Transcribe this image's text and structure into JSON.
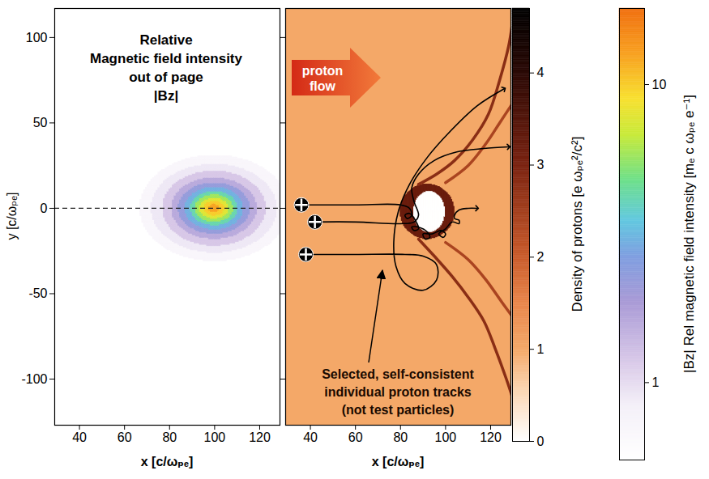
{
  "chart_data": [
    {
      "type": "heatmap",
      "title": "Relative\nMagnetic field intensity\nout of page\n|Bz|",
      "x_label": "x [c/ωₚₑ]",
      "y_label": "y [c/ωₚₑ]",
      "xlim": [
        29,
        129
      ],
      "ylim": [
        -127,
        117
      ],
      "xticks": [
        40,
        60,
        80,
        100,
        120
      ],
      "yticks": [
        -100,
        -50,
        0,
        50,
        100
      ],
      "field": {
        "center": [
          100,
          0
        ],
        "contours": [
          {
            "value": 0.7,
            "rx": 33,
            "ry": 31
          },
          {
            "value": 0.9,
            "rx": 28,
            "ry": 26
          },
          {
            "value": 1.2,
            "rx": 23,
            "ry": 22
          },
          {
            "value": 1.6,
            "rx": 19,
            "ry": 18
          },
          {
            "value": 2.2,
            "rx": 16,
            "ry": 15
          },
          {
            "value": 3,
            "rx": 13,
            "ry": 12.5
          },
          {
            "value": 4.2,
            "rx": 10.5,
            "ry": 10
          },
          {
            "value": 5.8,
            "rx": 8.5,
            "ry": 8
          },
          {
            "value": 7.8,
            "rx": 6.5,
            "ry": 6
          },
          {
            "value": 10,
            "rx": 4.5,
            "ry": 4.3
          },
          {
            "value": 12.5,
            "rx": 2.5,
            "ry": 2.4
          }
        ]
      },
      "colorbar": {
        "label": "|Bz| Rel magnetic field intensity [mₑ c ωₚₑ e⁻¹]",
        "range": [
          0.55,
          18
        ],
        "ticks": [
          1,
          10
        ],
        "log": true
      },
      "annotations": [
        {
          "type": "hline",
          "y": 0,
          "line_style": "dashed"
        }
      ]
    },
    {
      "type": "heatmap",
      "x_label": "x [c/ωₚₑ]",
      "xlim": [
        29,
        129
      ],
      "ylim": [
        -127,
        117
      ],
      "xticks": [
        40,
        60,
        80,
        100,
        120
      ],
      "yticks": [
        -100,
        -50,
        0,
        50,
        100
      ],
      "tick_labels": "x",
      "field": {
        "background": 1,
        "regions": [
          {
            "value": 3.2,
            "cx": 92,
            "cy": -2,
            "rx": 12,
            "ry": 16
          },
          {
            "value": 0,
            "cx": 93,
            "cy": -2,
            "rx": 7,
            "ry": 12
          }
        ],
        "shock_fronts": [
          {
            "value": 2.8,
            "points": [
              [
                88,
                14
              ],
              [
                96,
                20
              ],
              [
                104,
                28
              ],
              [
                112,
                40
              ],
              [
                119,
                55
              ],
              [
                124,
                75
              ],
              [
                128,
                95
              ],
              [
                130,
                112
              ]
            ]
          },
          {
            "value": 2.4,
            "points": [
              [
                100,
                15
              ],
              [
                110,
                25
              ],
              [
                118,
                38
              ],
              [
                124,
                50
              ],
              [
                130,
                62
              ]
            ]
          },
          {
            "value": 2.8,
            "points": [
              [
                88,
                -18
              ],
              [
                95,
                -28
              ],
              [
                103,
                -40
              ],
              [
                110,
                -52
              ],
              [
                117,
                -66
              ],
              [
                122,
                -82
              ],
              [
                127,
                -100
              ],
              [
                130,
                -112
              ]
            ]
          },
          {
            "value": 2.4,
            "points": [
              [
                100,
                -20
              ],
              [
                110,
                -30
              ],
              [
                118,
                -42
              ],
              [
                125,
                -55
              ],
              [
                130,
                -64
              ]
            ]
          }
        ]
      },
      "tracks": [
        {
          "points": [
            [
              36,
              2
            ],
            [
              60,
              2
            ],
            [
              80,
              2
            ],
            [
              84,
              0
            ],
            [
              85,
              -4
            ],
            [
              83,
              -6
            ],
            [
              82,
              -4
            ],
            [
              84,
              -3
            ],
            [
              87,
              -8
            ],
            [
              88,
              -12
            ],
            [
              86,
              -13
            ],
            [
              85,
              -11
            ],
            [
              88,
              -11
            ],
            [
              92,
              -14
            ],
            [
              93,
              -17
            ],
            [
              91,
              -18
            ],
            [
              90,
              -15
            ],
            [
              94,
              -15
            ],
            [
              98,
              -13
            ],
            [
              100,
              -15
            ],
            [
              99,
              -17
            ],
            [
              97,
              -15
            ],
            [
              100,
              -12
            ],
            [
              103,
              -8
            ],
            [
              106,
              -9
            ],
            [
              106,
              -7
            ],
            [
              104,
              -6
            ],
            [
              104,
              -4
            ],
            [
              106,
              -1
            ],
            [
              110,
              0
            ],
            [
              114,
              0
            ]
          ]
        },
        {
          "points": [
            [
              42,
              -8
            ],
            [
              60,
              -8
            ],
            [
              80,
              -9
            ],
            [
              86,
              -8
            ],
            [
              88,
              -4
            ],
            [
              86,
              4
            ],
            [
              85,
              12
            ],
            [
              88,
              20
            ],
            [
              95,
              28
            ],
            [
              105,
              33
            ],
            [
              117,
              35
            ],
            [
              128,
              36
            ]
          ]
        },
        {
          "points": [
            [
              38,
              -27
            ],
            [
              60,
              -27
            ],
            [
              82,
              -27
            ],
            [
              90,
              -28
            ],
            [
              96,
              -33
            ],
            [
              96,
              -42
            ],
            [
              90,
              -48
            ],
            [
              82,
              -44
            ],
            [
              78,
              -34
            ],
            [
              77,
              -20
            ],
            [
              79,
              -2
            ],
            [
              84,
              14
            ],
            [
              92,
              30
            ],
            [
              102,
              45
            ],
            [
              114,
              60
            ],
            [
              126,
              70
            ]
          ]
        }
      ],
      "colorbar": {
        "label": "Density of protons [e ωₚₑ²/c²]",
        "range": [
          0,
          4.7
        ],
        "ticks": [
          0,
          1,
          2,
          3,
          4
        ]
      },
      "annotations": [
        {
          "type": "arrow",
          "text": "proton\nflow"
        },
        {
          "type": "label",
          "text": "Selected, self-consistent\nindividual proton tracks\n(not test particles)"
        }
      ]
    }
  ]
}
